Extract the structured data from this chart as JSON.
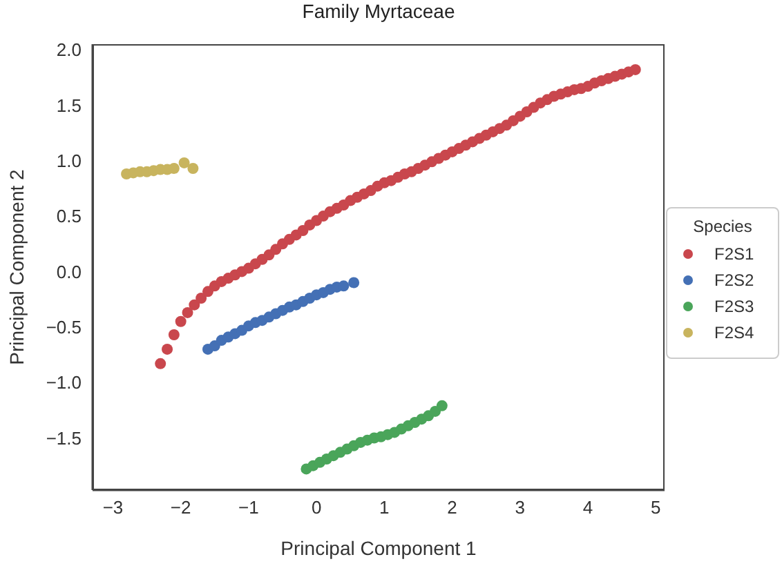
{
  "chart_data": {
    "type": "scatter",
    "title": "Family Myrtaceae",
    "xlabel": "Principal Component 1",
    "ylabel": "Principal Component 2",
    "legend_title": "Species",
    "legend": "right",
    "grid": false,
    "marker": "circle",
    "xlim": [
      -3.3,
      5.13
    ],
    "ylim": [
      -1.97,
      2.05
    ],
    "xticks": [
      -3,
      -2,
      -1,
      0,
      1,
      2,
      3,
      4,
      5
    ],
    "yticks": [
      -1.5,
      {
        "value": -1,
        "label": "−1.0"
      },
      -0.5,
      {
        "value": 0,
        "label": "0.0"
      },
      0.5,
      {
        "value": 1,
        "label": "1.0"
      },
      1.5,
      {
        "value": 2,
        "label": "2.0"
      }
    ],
    "series": [
      {
        "name": "F2S1",
        "color": "#c9474d",
        "x": [
          -2.3,
          -2.2,
          -2.1,
          -2.0,
          -1.9,
          -1.8,
          -1.7,
          -1.6,
          -1.5,
          -1.4,
          -1.3,
          -1.2,
          -1.1,
          -1.0,
          -0.9,
          -0.8,
          -0.7,
          -0.6,
          -0.5,
          -0.4,
          -0.3,
          -0.2,
          -0.1,
          0.0,
          0.1,
          0.2,
          0.3,
          0.4,
          0.5,
          0.6,
          0.7,
          0.8,
          0.9,
          1.0,
          1.1,
          1.2,
          1.3,
          1.4,
          1.5,
          1.6,
          1.7,
          1.8,
          1.9,
          2.0,
          2.1,
          2.2,
          2.3,
          2.4,
          2.5,
          2.6,
          2.7,
          2.8,
          2.9,
          3.0,
          3.1,
          3.2,
          3.3,
          3.4,
          3.5,
          3.6,
          3.7,
          3.8,
          3.9,
          4.0,
          4.1,
          4.2,
          4.3,
          4.4,
          4.5,
          4.6,
          4.7
        ],
        "values": [
          -0.83,
          -0.7,
          -0.57,
          -0.45,
          -0.37,
          -0.3,
          -0.24,
          -0.18,
          -0.13,
          -0.09,
          -0.06,
          -0.03,
          0.0,
          0.03,
          0.07,
          0.11,
          0.15,
          0.2,
          0.25,
          0.29,
          0.33,
          0.37,
          0.42,
          0.46,
          0.5,
          0.54,
          0.57,
          0.6,
          0.64,
          0.67,
          0.7,
          0.73,
          0.77,
          0.8,
          0.82,
          0.85,
          0.88,
          0.9,
          0.93,
          0.96,
          0.99,
          1.02,
          1.05,
          1.08,
          1.11,
          1.14,
          1.17,
          1.2,
          1.23,
          1.26,
          1.29,
          1.32,
          1.36,
          1.4,
          1.44,
          1.48,
          1.52,
          1.55,
          1.58,
          1.6,
          1.62,
          1.64,
          1.65,
          1.67,
          1.7,
          1.72,
          1.74,
          1.76,
          1.78,
          1.8,
          1.82
        ]
      },
      {
        "name": "F2S2",
        "color": "#4470b5",
        "x": [
          -1.6,
          -1.5,
          -1.4,
          -1.3,
          -1.2,
          -1.1,
          -1.0,
          -0.9,
          -0.8,
          -0.7,
          -0.6,
          -0.5,
          -0.4,
          -0.3,
          -0.2,
          -0.1,
          0.0,
          0.1,
          0.2,
          0.3,
          0.4,
          0.55
        ],
        "values": [
          -0.7,
          -0.67,
          -0.62,
          -0.59,
          -0.56,
          -0.53,
          -0.49,
          -0.46,
          -0.44,
          -0.41,
          -0.38,
          -0.35,
          -0.32,
          -0.3,
          -0.27,
          -0.24,
          -0.21,
          -0.19,
          -0.16,
          -0.14,
          -0.13,
          -0.1
        ]
      },
      {
        "name": "F2S3",
        "color": "#4aa55a",
        "x": [
          -0.15,
          -0.05,
          0.05,
          0.15,
          0.25,
          0.35,
          0.45,
          0.55,
          0.65,
          0.75,
          0.85,
          0.95,
          1.05,
          1.15,
          1.25,
          1.35,
          1.45,
          1.55,
          1.65,
          1.75,
          1.85
        ],
        "values": [
          -1.78,
          -1.75,
          -1.72,
          -1.69,
          -1.66,
          -1.63,
          -1.6,
          -1.57,
          -1.54,
          -1.52,
          -1.5,
          -1.49,
          -1.47,
          -1.45,
          -1.42,
          -1.39,
          -1.36,
          -1.33,
          -1.3,
          -1.26,
          -1.21
        ]
      },
      {
        "name": "F2S4",
        "color": "#c8b45e",
        "x": [
          -2.8,
          -2.7,
          -2.6,
          -2.5,
          -2.4,
          -2.3,
          -2.2,
          -2.1,
          -1.95,
          -1.82
        ],
        "values": [
          0.88,
          0.89,
          0.9,
          0.9,
          0.91,
          0.92,
          0.92,
          0.93,
          0.98,
          0.93
        ]
      }
    ]
  }
}
